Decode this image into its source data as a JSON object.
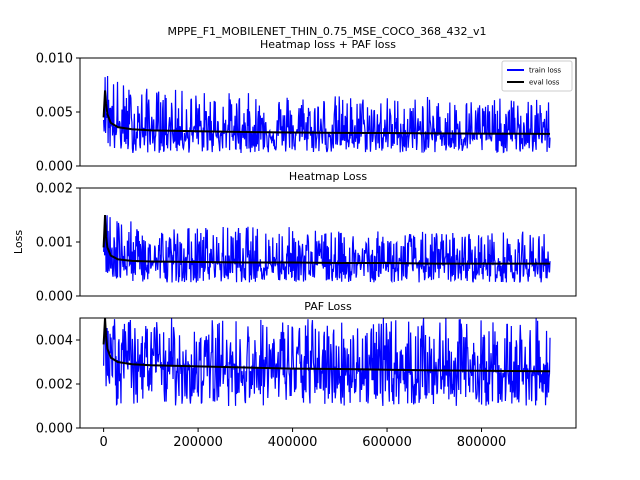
{
  "figure": {
    "suptitle": "MPPE_F1_MOBILENET_THIN_0.75_MSE_COCO_368_432_v1",
    "ylabel": "Loss"
  },
  "colors": {
    "train": "#0000ff",
    "eval": "#000000"
  },
  "chart_data": [
    {
      "type": "line",
      "title": "Heatmap loss + PAF loss",
      "xlabel": "",
      "ylabel": "",
      "xlim": [
        -50000,
        1000000
      ],
      "ylim": [
        0,
        0.01
      ],
      "yticks": [
        0.0,
        0.005,
        0.01
      ],
      "ytick_labels": [
        "0.000",
        "0.005",
        "0.010"
      ],
      "xticks": [],
      "xtick_labels": [],
      "legend": {
        "position": "top-right",
        "entries": [
          "train loss",
          "eval loss"
        ]
      },
      "series": [
        {
          "name": "train loss",
          "x": [
            0,
            5000,
            10000,
            20000,
            50000,
            100000,
            200000,
            300000,
            400000,
            500000,
            600000,
            700000,
            800000,
            900000,
            945000
          ],
          "y_min": [
            0.0035,
            0.002,
            0.0015,
            0.0012,
            0.0012,
            0.0012,
            0.0012,
            0.0012,
            0.0012,
            0.0012,
            0.0012,
            0.0012,
            0.0012,
            0.0012,
            0.0012
          ],
          "y_max": [
            0.006,
            0.01,
            0.01,
            0.0085,
            0.0075,
            0.0072,
            0.007,
            0.0068,
            0.0068,
            0.0066,
            0.0065,
            0.0064,
            0.0063,
            0.0062,
            0.0062
          ]
        },
        {
          "name": "eval loss",
          "x": [
            0,
            3000,
            5000,
            8000,
            15000,
            30000,
            60000,
            100000,
            200000,
            300000,
            400000,
            500000,
            600000,
            700000,
            800000,
            945000
          ],
          "y": [
            0.0045,
            0.007,
            0.0058,
            0.0048,
            0.004,
            0.0036,
            0.0034,
            0.0033,
            0.00322,
            0.00315,
            0.0031,
            0.00307,
            0.00305,
            0.00302,
            0.003,
            0.00298
          ]
        }
      ]
    },
    {
      "type": "line",
      "title": "Heatmap Loss",
      "xlabel": "",
      "ylabel": "",
      "xlim": [
        -50000,
        1000000
      ],
      "ylim": [
        0,
        0.002
      ],
      "yticks": [
        0.0,
        0.001,
        0.002
      ],
      "ytick_labels": [
        "0.000",
        "0.001",
        "0.002"
      ],
      "xticks": [],
      "xtick_labels": [],
      "series": [
        {
          "name": "train loss",
          "x": [
            0,
            5000,
            10000,
            20000,
            50000,
            100000,
            200000,
            300000,
            400000,
            500000,
            600000,
            700000,
            800000,
            900000,
            945000
          ],
          "y_min": [
            0.0008,
            0.0004,
            0.0003,
            0.00025,
            0.00025,
            0.00025,
            0.00025,
            0.00025,
            0.00025,
            0.00025,
            0.00025,
            0.00025,
            0.00025,
            0.00025,
            0.00025
          ],
          "y_max": [
            0.0012,
            0.002,
            0.002,
            0.0016,
            0.0014,
            0.0013,
            0.0013,
            0.0013,
            0.0013,
            0.0012,
            0.0012,
            0.0012,
            0.0012,
            0.0012,
            0.0012
          ]
        },
        {
          "name": "eval loss",
          "x": [
            0,
            3000,
            5000,
            8000,
            15000,
            30000,
            60000,
            100000,
            200000,
            300000,
            400000,
            500000,
            600000,
            700000,
            800000,
            945000
          ],
          "y": [
            0.0009,
            0.0015,
            0.0011,
            0.0009,
            0.00075,
            0.00068,
            0.00065,
            0.00064,
            0.00063,
            0.00062,
            0.00062,
            0.00061,
            0.00061,
            0.0006,
            0.0006,
            0.0006
          ]
        }
      ]
    },
    {
      "type": "line",
      "title": "PAF Loss",
      "xlabel": "",
      "ylabel": "",
      "xlim": [
        -50000,
        1000000
      ],
      "ylim": [
        0,
        0.005
      ],
      "yticks": [
        0.0,
        0.002,
        0.004
      ],
      "ytick_labels": [
        "0.000",
        "0.002",
        "0.004"
      ],
      "xticks": [
        0,
        200000,
        400000,
        600000,
        800000
      ],
      "xtick_labels": [
        "0",
        "200000",
        "400000",
        "600000",
        "800000"
      ],
      "series": [
        {
          "name": "train loss",
          "x": [
            0,
            5000,
            10000,
            20000,
            50000,
            100000,
            200000,
            300000,
            400000,
            500000,
            600000,
            700000,
            800000,
            900000,
            945000
          ],
          "y_min": [
            0.0025,
            0.0015,
            0.0012,
            0.001,
            0.001,
            0.001,
            0.001,
            0.001,
            0.001,
            0.001,
            0.001,
            0.001,
            0.001,
            0.001,
            0.001
          ],
          "y_max": [
            0.0045,
            0.005,
            0.005,
            0.005,
            0.005,
            0.005,
            0.005,
            0.005,
            0.005,
            0.005,
            0.005,
            0.005,
            0.005,
            0.005,
            0.005
          ]
        },
        {
          "name": "eval loss",
          "x": [
            0,
            3000,
            5000,
            8000,
            15000,
            30000,
            60000,
            100000,
            200000,
            300000,
            400000,
            500000,
            600000,
            700000,
            800000,
            945000
          ],
          "y": [
            0.0038,
            0.005,
            0.0042,
            0.0036,
            0.0032,
            0.003,
            0.0029,
            0.00285,
            0.0028,
            0.00275,
            0.0027,
            0.00268,
            0.00265,
            0.00262,
            0.0026,
            0.00258
          ]
        }
      ]
    }
  ]
}
